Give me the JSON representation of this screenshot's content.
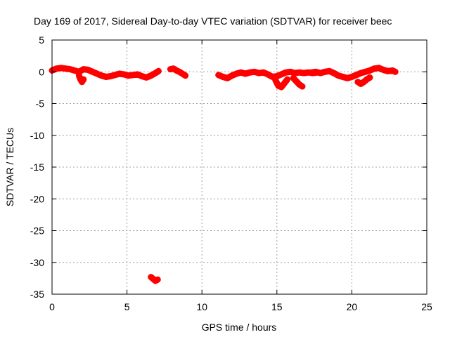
{
  "chart_data": {
    "type": "scatter",
    "title": "Day 169 of 2017, Sidereal Day-to-day VTEC variation (SDTVAR) for receiver beec",
    "xlabel": "GPS time / hours",
    "ylabel": "SDTVAR / TECUs",
    "xlim": [
      0,
      25
    ],
    "ylim": [
      -35,
      5
    ],
    "xticks": [
      0,
      5,
      10,
      15,
      20,
      25
    ],
    "yticks": [
      5,
      0,
      -5,
      -10,
      -15,
      -20,
      -25,
      -30,
      -35
    ],
    "grid": true,
    "legend": "none",
    "series": [
      {
        "name": "SDTVAR",
        "color": "#ff0000",
        "segments": [
          {
            "x": [
              0.0,
              0.3,
              0.6,
              0.9,
              1.2,
              1.5,
              1.8,
              2.1,
              2.4,
              2.7,
              3.0,
              3.3,
              3.6,
              3.9,
              4.2,
              4.5,
              4.8,
              5.1,
              5.4,
              5.7,
              6.0,
              6.3,
              6.6,
              6.9,
              7.1
            ],
            "y": [
              0.2,
              0.5,
              0.6,
              0.5,
              0.4,
              0.2,
              0.0,
              0.4,
              0.3,
              0.0,
              -0.3,
              -0.6,
              -0.8,
              -0.7,
              -0.5,
              -0.3,
              -0.4,
              -0.6,
              -0.5,
              -0.4,
              -0.7,
              -0.9,
              -0.6,
              -0.2,
              0.1
            ]
          },
          {
            "x": [
              1.8,
              1.9,
              2.0,
              2.1
            ],
            "y": [
              -0.6,
              -1.2,
              -1.6,
              -1.2
            ]
          },
          {
            "x": [
              7.9,
              8.1,
              8.3,
              8.5,
              8.7,
              8.9
            ],
            "y": [
              0.4,
              0.5,
              0.2,
              0.0,
              -0.3,
              -0.6
            ]
          },
          {
            "x": [
              11.1,
              11.4,
              11.7,
              12.0,
              12.3,
              12.6,
              12.9,
              13.2,
              13.5,
              13.8,
              14.1,
              14.4,
              14.7,
              15.0,
              15.3,
              15.6,
              15.9,
              16.2,
              16.5,
              16.8,
              17.1,
              17.4,
              17.7
            ],
            "y": [
              -0.5,
              -0.8,
              -1.0,
              -0.6,
              -0.3,
              -0.1,
              -0.3,
              -0.1,
              0.0,
              -0.2,
              -0.1,
              -0.4,
              -0.8,
              -0.7,
              -0.4,
              -0.1,
              0.0,
              -0.2,
              -0.1,
              -0.2,
              -0.1,
              -0.2,
              -0.1
            ]
          },
          {
            "x": [
              14.9,
              15.1,
              15.3,
              15.5,
              15.7
            ],
            "y": [
              -1.3,
              -2.2,
              -2.4,
              -1.8,
              -1.2
            ]
          },
          {
            "x": [
              16.1,
              16.3,
              16.5,
              16.7
            ],
            "y": [
              -1.0,
              -1.5,
              -2.0,
              -2.3
            ]
          },
          {
            "x": [
              17.3,
              17.6,
              17.9,
              18.2,
              18.5,
              18.8,
              19.1,
              19.4,
              19.7,
              20.0,
              20.3,
              20.6,
              20.9,
              21.2,
              21.5,
              21.8,
              22.1,
              22.4,
              22.7,
              22.9
            ],
            "y": [
              -0.1,
              0.0,
              -0.2,
              0.0,
              0.1,
              -0.2,
              -0.6,
              -0.8,
              -1.0,
              -0.8,
              -0.5,
              -0.2,
              0.0,
              0.2,
              0.5,
              0.6,
              0.3,
              0.1,
              0.2,
              0.0
            ]
          },
          {
            "x": [
              20.4,
              20.6,
              20.8,
              21.0,
              21.2
            ],
            "y": [
              -1.6,
              -1.9,
              -1.6,
              -1.2,
              -0.9
            ]
          },
          {
            "x": [
              6.6,
              6.75,
              6.9,
              7.05
            ],
            "y": [
              -32.3,
              -32.6,
              -32.9,
              -32.7
            ]
          }
        ]
      }
    ]
  }
}
